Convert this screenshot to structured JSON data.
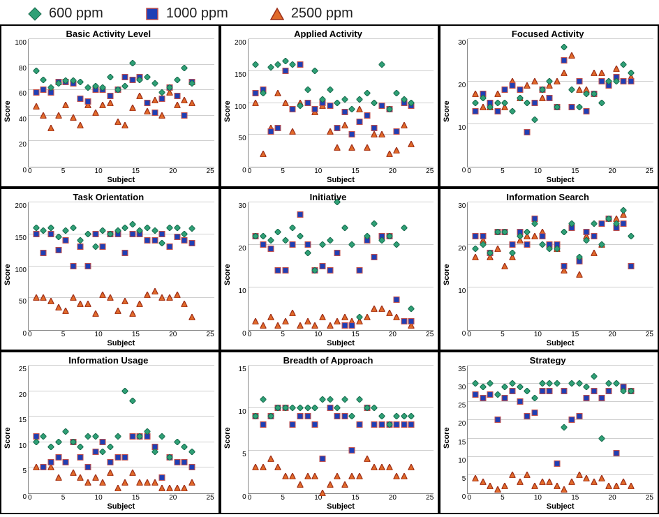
{
  "legend": {
    "items": [
      {
        "label": "600 ppm",
        "shape": "diamond",
        "fill": "#2fa076",
        "stroke": "#1a6b4e"
      },
      {
        "label": "1000 ppm",
        "shape": "square",
        "fill": "#1f3fb5",
        "stroke": "#c0504d"
      },
      {
        "label": "2500 ppm",
        "shape": "triangle",
        "fill": "#e06a2a",
        "stroke": "#9c2f1a"
      }
    ]
  },
  "global": {
    "xlabel": "Subject",
    "ylabel": "Score",
    "xlim": [
      0,
      25
    ],
    "xticks": [
      0,
      5,
      10,
      15,
      20,
      25
    ],
    "marker_size": 9,
    "grid_color": "#cfcfcf",
    "axis_color": "#888888",
    "background_color": "#ffffff",
    "title_fontsize": 13,
    "label_fontsize": 11,
    "tick_fontsize": 10
  },
  "panels": [
    {
      "title": "Basic Activity Level",
      "ylim": [
        0,
        100
      ],
      "ytick_step": 20,
      "series": {
        "s600": [
          75,
          68,
          62,
          65,
          67,
          67,
          66,
          62,
          63,
          62,
          70,
          60,
          63,
          81,
          68,
          70,
          65,
          58,
          62,
          68,
          77,
          65
        ],
        "s1000": [
          58,
          60,
          58,
          66,
          66,
          65,
          53,
          51,
          60,
          60,
          55,
          60,
          70,
          68,
          70,
          50,
          42,
          53,
          62,
          55,
          40,
          66
        ],
        "s2500": [
          47,
          40,
          30,
          40,
          48,
          38,
          32,
          48,
          42,
          48,
          50,
          35,
          32,
          46,
          55,
          43,
          52,
          40,
          58,
          48,
          52,
          50
        ]
      }
    },
    {
      "title": "Applied Activity",
      "ylim": [
        0,
        200
      ],
      "ytick_step": 50,
      "series": {
        "s600": [
          160,
          115,
          155,
          160,
          165,
          160,
          95,
          120,
          150,
          105,
          120,
          100,
          105,
          90,
          105,
          115,
          100,
          160,
          90,
          115,
          105,
          100
        ],
        "s1000": [
          115,
          120,
          55,
          60,
          150,
          90,
          160,
          100,
          90,
          100,
          95,
          60,
          85,
          50,
          70,
          80,
          60,
          95,
          90,
          55,
          100,
          95
        ],
        "s2500": [
          100,
          20,
          60,
          115,
          100,
          55,
          100,
          100,
          85,
          95,
          55,
          30,
          65,
          30,
          90,
          30,
          50,
          50,
          20,
          25,
          65,
          35
        ]
      }
    },
    {
      "title": "Focused Activity",
      "ylim": [
        0,
        30
      ],
      "ytick_step": 10,
      "series": {
        "s600": [
          15,
          16,
          14,
          15,
          15,
          13,
          16,
          15,
          11,
          18,
          20,
          14,
          28,
          18,
          14,
          17,
          17,
          15,
          20,
          20,
          24,
          22
        ],
        "s1000": [
          13,
          17,
          15,
          13,
          18,
          19,
          18,
          8,
          15,
          18,
          16,
          14,
          25,
          14,
          20,
          13,
          17,
          20,
          19,
          21,
          20,
          20
        ],
        "s2500": [
          17,
          14,
          14,
          17,
          14,
          20,
          16,
          19,
          20,
          16,
          19,
          20,
          22,
          26,
          18,
          18,
          22,
          22,
          19,
          23,
          20,
          21
        ]
      }
    },
    {
      "title": "Task Orientation",
      "ylim": [
        0,
        200
      ],
      "ytick_step": 50,
      "series": {
        "s600": [
          160,
          155,
          160,
          145,
          155,
          160,
          140,
          150,
          130,
          155,
          150,
          155,
          160,
          165,
          155,
          160,
          155,
          135,
          160,
          160,
          150,
          158
        ],
        "s1000": [
          150,
          120,
          150,
          125,
          140,
          100,
          130,
          100,
          150,
          130,
          150,
          150,
          120,
          150,
          150,
          140,
          140,
          150,
          130,
          145,
          140,
          135
        ],
        "s2500": [
          50,
          50,
          45,
          35,
          30,
          50,
          40,
          40,
          25,
          55,
          50,
          30,
          45,
          25,
          40,
          55,
          60,
          50,
          50,
          55,
          40,
          20
        ]
      }
    },
    {
      "title": "Initiative",
      "ylim": [
        0,
        30
      ],
      "ytick_step": 10,
      "series": {
        "s600": [
          22,
          22,
          21,
          23,
          21,
          24,
          22,
          18,
          14,
          20,
          21,
          30,
          24,
          20,
          3,
          22,
          25,
          21,
          22,
          20,
          24,
          5
        ],
        "s1000": [
          22,
          20,
          19,
          14,
          14,
          20,
          27,
          20,
          14,
          15,
          14,
          18,
          1,
          1,
          14,
          21,
          17,
          22,
          22,
          7,
          2,
          2
        ],
        "s2500": [
          2,
          1,
          3,
          1,
          2,
          4,
          1,
          2,
          1,
          3,
          1,
          2,
          3,
          2,
          2,
          3,
          5,
          5,
          4,
          3,
          2,
          1
        ]
      }
    },
    {
      "title": "Information Search",
      "ylim": [
        0,
        30
      ],
      "ytick_step": 10,
      "series": {
        "s600": [
          19,
          20,
          18,
          23,
          23,
          18,
          22,
          23,
          25,
          20,
          19,
          19,
          23,
          25,
          17,
          21,
          25,
          20,
          26,
          25,
          28,
          22
        ],
        "s1000": [
          22,
          22,
          18,
          23,
          23,
          20,
          23,
          20,
          26,
          22,
          20,
          20,
          15,
          24,
          16,
          23,
          22,
          25,
          26,
          24,
          25,
          15
        ],
        "s2500": [
          17,
          21,
          17,
          19,
          15,
          17,
          21,
          22,
          22,
          23,
          20,
          19,
          14,
          25,
          13,
          22,
          18,
          20,
          26,
          26,
          27,
          15
        ]
      }
    },
    {
      "title": "Information Usage",
      "ylim": [
        0,
        25
      ],
      "ytick_step": 5,
      "series": {
        "s600": [
          10,
          11,
          9,
          10,
          12,
          10,
          9,
          11,
          11,
          8,
          9,
          11,
          20,
          18,
          11,
          12,
          8,
          11,
          7,
          10,
          9,
          8
        ],
        "s1000": [
          11,
          5,
          6,
          7,
          6,
          10,
          7,
          5,
          8,
          10,
          6,
          7,
          7,
          11,
          11,
          11,
          9,
          3,
          7,
          6,
          6,
          5
        ],
        "s2500": [
          5,
          5,
          5,
          3,
          6,
          4,
          3,
          2,
          3,
          2,
          4,
          1,
          2,
          4,
          2,
          2,
          2,
          1,
          1,
          1,
          1,
          2
        ]
      }
    },
    {
      "title": "Breadth of Approach",
      "ylim": [
        0,
        15
      ],
      "ytick_step": 5,
      "series": {
        "s600": [
          9,
          11,
          9,
          10,
          10,
          10,
          10,
          10,
          10,
          11,
          11,
          10,
          11,
          9,
          11,
          10,
          10,
          9,
          8,
          9,
          9,
          9
        ],
        "s1000": [
          9,
          8,
          9,
          10,
          10,
          8,
          9,
          9,
          8,
          4,
          10,
          9,
          9,
          5,
          8,
          10,
          8,
          8,
          8,
          8,
          8,
          8
        ],
        "s2500": [
          3,
          3,
          4,
          3,
          2,
          2,
          1,
          2,
          2,
          0,
          1,
          2,
          1,
          2,
          2,
          4,
          3,
          3,
          3,
          2,
          2,
          3
        ]
      }
    },
    {
      "title": "Strategy",
      "ylim": [
        0,
        35
      ],
      "ytick_step": 5,
      "series": {
        "s600": [
          30,
          29,
          30,
          27,
          29,
          30,
          29,
          28,
          26,
          30,
          30,
          30,
          18,
          30,
          30,
          29,
          32,
          15,
          30,
          30,
          28,
          28
        ],
        "s1000": [
          27,
          26,
          27,
          20,
          26,
          28,
          25,
          21,
          22,
          28,
          28,
          8,
          28,
          20,
          21,
          26,
          28,
          26,
          28,
          11,
          29,
          28
        ],
        "s2500": [
          4,
          3,
          2,
          1,
          2,
          5,
          3,
          5,
          2,
          3,
          3,
          2,
          1,
          3,
          5,
          4,
          3,
          4,
          2,
          2,
          3,
          2
        ]
      }
    }
  ]
}
